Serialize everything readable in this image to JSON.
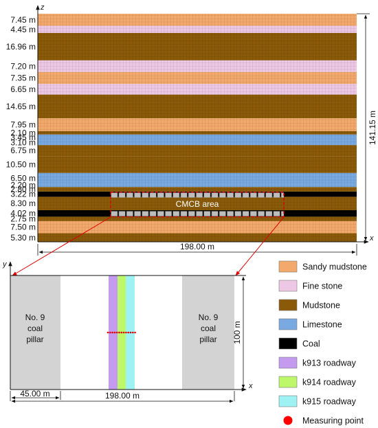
{
  "upper": {
    "z_axis": "z",
    "x_axis": "x",
    "width_label": "198.00 m",
    "height_label": "141.15 m",
    "region_label": "CMCB area",
    "layers": [
      {
        "thickness": "7.45 m",
        "type": "sandy_mudstone"
      },
      {
        "thickness": "4.45 m",
        "type": "fine_stone"
      },
      {
        "thickness": "16.96 m",
        "type": "mudstone"
      },
      {
        "thickness": "7.20 m",
        "type": "fine_stone"
      },
      {
        "thickness": "7.35 m",
        "type": "sandy_mudstone"
      },
      {
        "thickness": "6.65 m",
        "type": "fine_stone"
      },
      {
        "thickness": "14.65 m",
        "type": "mudstone"
      },
      {
        "thickness": "7.95 m",
        "type": "sandy_mudstone"
      },
      {
        "thickness": "2.10 m",
        "type": "mudstone"
      },
      {
        "thickness": "3.45 m",
        "type": "limestone"
      },
      {
        "thickness": "3.10 m",
        "type": "limestone"
      },
      {
        "thickness": "6.75 m",
        "type": "mudstone"
      },
      {
        "thickness": "10.50 m",
        "type": "mudstone"
      },
      {
        "thickness": "6.50 m",
        "type": "limestone"
      },
      {
        "thickness": "2.20 m",
        "type": "limestone"
      },
      {
        "thickness": "2.80 m",
        "type": "mudstone"
      },
      {
        "thickness": "3.22 m",
        "type": "coal"
      },
      {
        "thickness": "8.30 m",
        "type": "mudstone"
      },
      {
        "thickness": "4.02 m",
        "type": "coal"
      },
      {
        "thickness": "2.75 m",
        "type": "mudstone"
      },
      {
        "thickness": "7.50 m",
        "type": "sandy_mudstone"
      },
      {
        "thickness": "5.30 m",
        "type": "mudstone"
      }
    ]
  },
  "lower": {
    "y_axis": "y",
    "x_axis": "x",
    "left_pillar": [
      "No. 9",
      "coal",
      "pillar"
    ],
    "right_pillar": [
      "No. 9",
      "coal",
      "pillar"
    ],
    "pillar_width_label": "45.00 m",
    "width_label": "198.00 m",
    "height_label": "100 m"
  },
  "legend": [
    {
      "key": "sandy_mudstone",
      "label": "Sandy mudstone",
      "color": "#F2A96B",
      "marker": "swatch"
    },
    {
      "key": "fine_stone",
      "label": "Fine stone",
      "color": "#EDC8E4",
      "marker": "swatch"
    },
    {
      "key": "mudstone",
      "label": "Mudstone",
      "color": "#8A5A08",
      "marker": "swatch"
    },
    {
      "key": "limestone",
      "label": "Limestone",
      "color": "#78A9E0",
      "marker": "swatch"
    },
    {
      "key": "coal",
      "label": "Coal",
      "color": "#000000",
      "marker": "swatch"
    },
    {
      "key": "k913",
      "label": "k913 roadway",
      "color": "#C49BEF",
      "marker": "swatch"
    },
    {
      "key": "k914",
      "label": "k914 roadway",
      "color": "#BEF76A",
      "marker": "swatch"
    },
    {
      "key": "k915",
      "label": "k915 roadway",
      "color": "#9EF2F4",
      "marker": "swatch"
    },
    {
      "key": "measuring",
      "label": "Measuring point",
      "color": "#FF0000",
      "marker": "dot"
    }
  ],
  "colors": {
    "pillar": "#D3D3D3",
    "annotation": "#E00000",
    "axis": "#111111"
  }
}
